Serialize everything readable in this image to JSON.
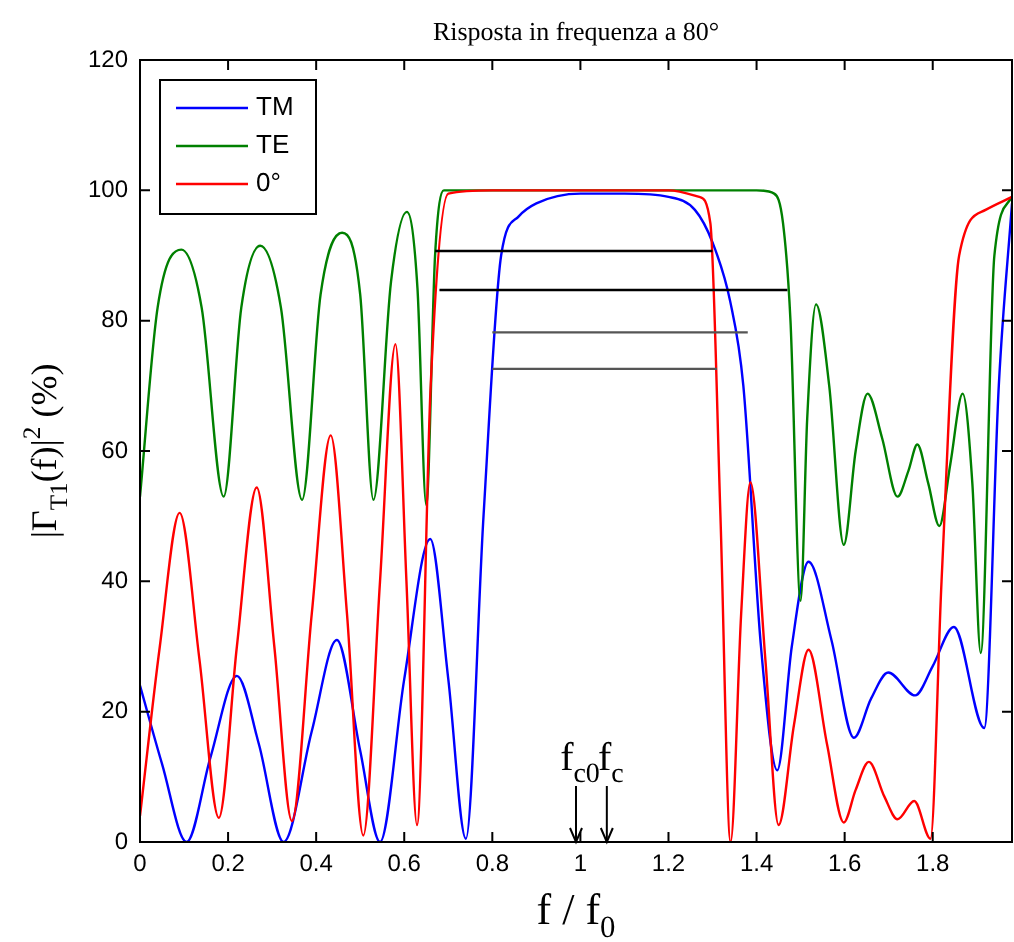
{
  "chart_data": {
    "type": "line",
    "title": "Risposta in frequenza a 80°",
    "xlabel": "f / f$_{0}$",
    "ylabel": "|Γ$_{T1}$(f)|$^{2}$ (%)",
    "xlim": [
      0,
      1.98
    ],
    "xticks": [
      0,
      0.2,
      0.4,
      0.6,
      0.8,
      1,
      1.2,
      1.4,
      1.6,
      1.8
    ],
    "ylim": [
      0,
      120
    ],
    "yticks": [
      0,
      20,
      40,
      60,
      80,
      100,
      120
    ],
    "legend": "top left",
    "series": [
      {
        "name": "TM",
        "color": "#0000ff",
        "x": [
          0,
          0.05,
          0.106,
          0.16,
          0.22,
          0.27,
          0.326,
          0.39,
          0.447,
          0.5,
          0.545,
          0.6,
          0.659,
          0.7,
          0.74,
          0.78,
          0.82,
          0.86,
          0.9,
          1.0,
          1.1,
          1.2,
          1.26,
          1.3,
          1.34,
          1.37,
          1.41,
          1.447,
          1.48,
          1.518,
          1.57,
          1.621,
          1.66,
          1.699,
          1.76,
          1.8,
          1.848,
          1.917,
          1.95,
          1.98
        ],
        "values": [
          24,
          12,
          0,
          13,
          25.5,
          15,
          0,
          17,
          31,
          14,
          0,
          25,
          46.5,
          25,
          0.5,
          50,
          90,
          96,
          98,
          99.5,
          99.5,
          99,
          97,
          92,
          83,
          70,
          30,
          11,
          30,
          43,
          31,
          16,
          22,
          26,
          22.5,
          27,
          33,
          17.5,
          70,
          98
        ]
      },
      {
        "name": "TE",
        "color": "#008000",
        "x": [
          0,
          0.04,
          0.094,
          0.14,
          0.19,
          0.23,
          0.273,
          0.32,
          0.368,
          0.41,
          0.459,
          0.5,
          0.53,
          0.57,
          0.606,
          0.63,
          0.65,
          0.67,
          0.69,
          0.8,
          1.0,
          1.2,
          1.4,
          1.44,
          1.46,
          1.477,
          1.5,
          1.515,
          1.535,
          1.565,
          1.598,
          1.625,
          1.652,
          1.685,
          1.72,
          1.745,
          1.765,
          1.79,
          1.815,
          1.84,
          1.868,
          1.89,
          1.909,
          1.94,
          1.98
        ],
        "values": [
          53,
          82,
          90.9,
          82,
          53,
          82,
          91.5,
          82,
          52.5,
          84,
          93.5,
          84,
          52.5,
          86,
          96.7,
          85,
          51.7,
          90,
          100,
          100,
          100,
          100,
          100,
          99.5,
          95,
          80,
          37,
          65,
          82.5,
          70,
          45.6,
          60,
          68.8,
          62,
          53,
          57,
          61,
          55,
          48.5,
          58,
          68.8,
          55,
          29,
          90,
          99
        ]
      },
      {
        "name": "0°",
        "color": "#ff0000",
        "x": [
          0,
          0.045,
          0.09,
          0.135,
          0.179,
          0.22,
          0.265,
          0.305,
          0.345,
          0.39,
          0.433,
          0.47,
          0.507,
          0.545,
          0.58,
          0.605,
          0.629,
          0.66,
          0.7,
          0.8,
          1.0,
          1.2,
          1.27,
          1.295,
          1.318,
          1.341,
          1.365,
          1.386,
          1.42,
          1.45,
          1.485,
          1.518,
          1.56,
          1.598,
          1.625,
          1.655,
          1.69,
          1.72,
          1.758,
          1.795,
          1.82,
          1.86,
          1.92,
          1.98
        ],
        "values": [
          4,
          30,
          50.5,
          28,
          3.7,
          30,
          54.4,
          30,
          3.2,
          35,
          62.4,
          35,
          1,
          40,
          76.4,
          40,
          2.6,
          70,
          99.5,
          100,
          100,
          100,
          99,
          95,
          50,
          0,
          35,
          55.2,
          28,
          2.6,
          18,
          29.5,
          15,
          3,
          8,
          12.3,
          7,
          3.5,
          6.3,
          0.5,
          40,
          90,
          97,
          99
        ]
      },
      {
        "color": "#000000",
        "x": [
          0.67,
          1.3
        ],
        "values": [
          90.7,
          90.7
        ]
      },
      {
        "color": "#000000",
        "x": [
          0.68,
          1.47
        ],
        "values": [
          84.7,
          84.7
        ]
      },
      {
        "color": "#555555",
        "x": [
          0.8,
          1.38
        ],
        "values": [
          78.2,
          78.2
        ]
      },
      {
        "color": "#555555",
        "x": [
          0.8,
          1.31
        ],
        "values": [
          72.6,
          72.6
        ]
      }
    ],
    "ref_lines": [
      {
        "axis": "x",
        "value": 0.99,
        "label": "f$_{c0}$"
      },
      {
        "axis": "x",
        "value": 1.06,
        "label": "f$_{c}$"
      }
    ]
  }
}
